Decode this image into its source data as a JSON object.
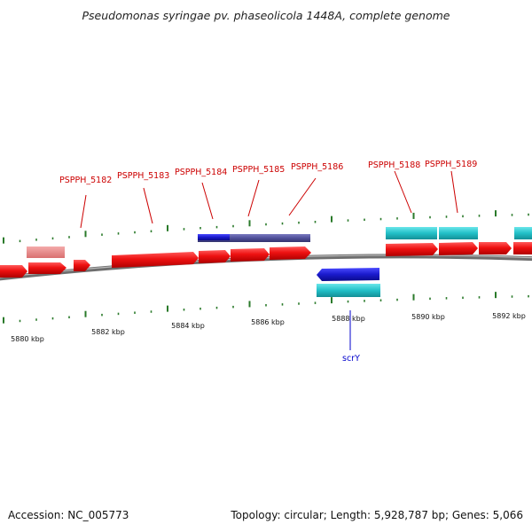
{
  "title": "Pseudomonas syringae pv. phaseolicola 1448A, complete genome",
  "footer": {
    "accession": "Accession: NC_005773",
    "summary": "Topology: circular; Length: 5,928,787 bp; Genes: 5,066"
  },
  "colors": {
    "cds_forward": "#ee1111",
    "cds_pseudo": "#ee8888",
    "cds_reverse": "#1a1acc",
    "rna": "#22c0c8",
    "operon": "#50509a",
    "label_forward": "#cc0000",
    "label_reverse": "#0000cc",
    "backbone": "#808080",
    "tick": "#2a7a2a"
  },
  "axis": {
    "unit": "kbp",
    "tick_labels": [
      "5880 kbp",
      "5882 kbp",
      "5884 kbp",
      "5886 kbp",
      "5888 kbp",
      "5890 kbp",
      "5892 kbp"
    ]
  },
  "gene_labels": [
    {
      "text": "PSPPH_5182",
      "strand": "forward"
    },
    {
      "text": "PSPPH_5183",
      "strand": "forward"
    },
    {
      "text": "PSPPH_5184",
      "strand": "forward"
    },
    {
      "text": "PSPPH_5185",
      "strand": "forward"
    },
    {
      "text": "PSPPH_5186",
      "strand": "forward"
    },
    {
      "text": "PSPPH_5188",
      "strand": "forward"
    },
    {
      "text": "PSPPH_5189",
      "strand": "forward"
    },
    {
      "text": "scrY",
      "strand": "reverse"
    }
  ]
}
